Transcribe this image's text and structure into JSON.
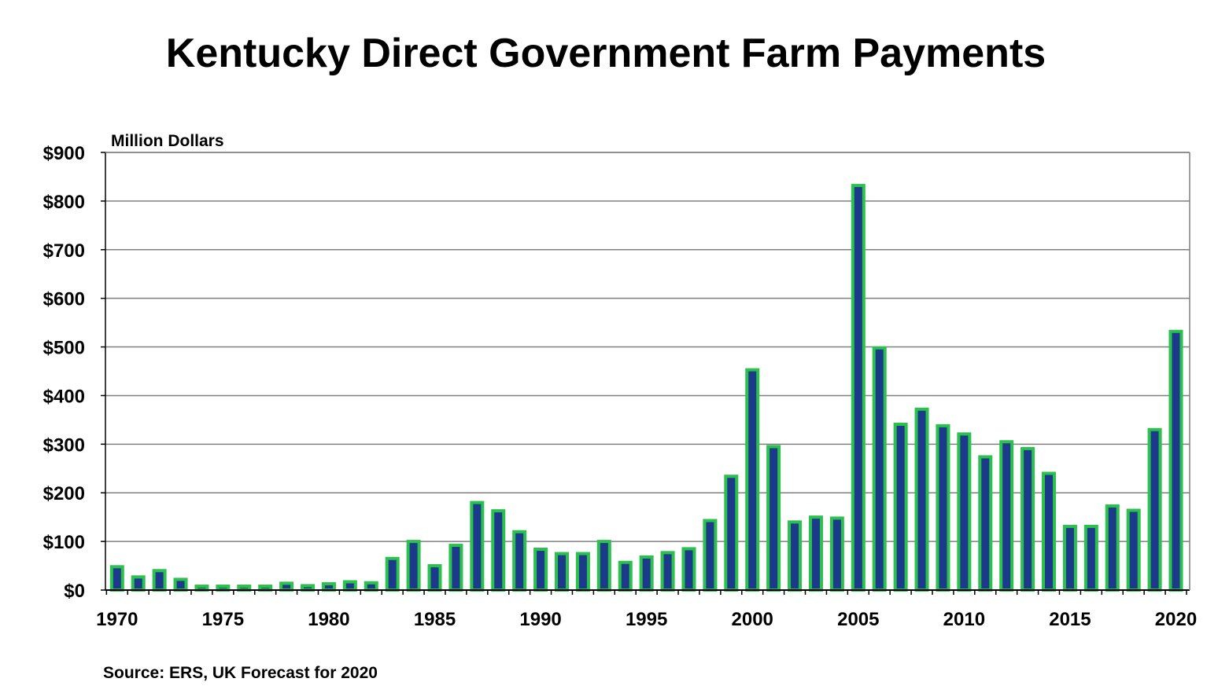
{
  "title": "Kentucky Direct Government Farm Payments",
  "source": "Source:  ERS, UK Forecast for 2020",
  "chart_data": {
    "type": "bar",
    "title": "Kentucky Direct Government Farm Payments",
    "unit_label": "Million  Dollars",
    "ylabel": "Million Dollars",
    "xlabel": "",
    "ylim": [
      0,
      900
    ],
    "yticks": [
      0,
      100,
      200,
      300,
      400,
      500,
      600,
      700,
      800,
      900
    ],
    "ytick_labels": [
      "$0",
      "$100",
      "$200",
      "$300",
      "$400",
      "$500",
      "$600",
      "$700",
      "$800",
      "$900"
    ],
    "xtick_labels": [
      "1970",
      "1975",
      "1980",
      "1985",
      "1990",
      "1995",
      "2000",
      "2005",
      "2010",
      "2015",
      "2020"
    ],
    "grid": true,
    "legend": "none",
    "categories": [
      1970,
      1971,
      1972,
      1973,
      1974,
      1975,
      1976,
      1977,
      1978,
      1979,
      1980,
      1981,
      1982,
      1983,
      1984,
      1985,
      1986,
      1987,
      1988,
      1989,
      1990,
      1991,
      1992,
      1993,
      1994,
      1995,
      1996,
      1997,
      1998,
      1999,
      2000,
      2001,
      2002,
      2003,
      2004,
      2005,
      2006,
      2007,
      2008,
      2009,
      2010,
      2011,
      2012,
      2013,
      2014,
      2015,
      2016,
      2017,
      2018,
      2019,
      2020
    ],
    "values": [
      48,
      27,
      40,
      22,
      8,
      8,
      8,
      8,
      14,
      9,
      13,
      17,
      15,
      65,
      100,
      50,
      92,
      180,
      163,
      120,
      84,
      75,
      75,
      100,
      57,
      68,
      77,
      85,
      143,
      234,
      453,
      295,
      140,
      150,
      148,
      832,
      498,
      341,
      372,
      338,
      321,
      274,
      305,
      291,
      240,
      131,
      131,
      173,
      164,
      330,
      532
    ],
    "colors": {
      "bar_fill": "#1b3a8a",
      "bar_outline": "#2cc04e",
      "grid": "#7f7f7f",
      "axis": "#000000"
    }
  }
}
